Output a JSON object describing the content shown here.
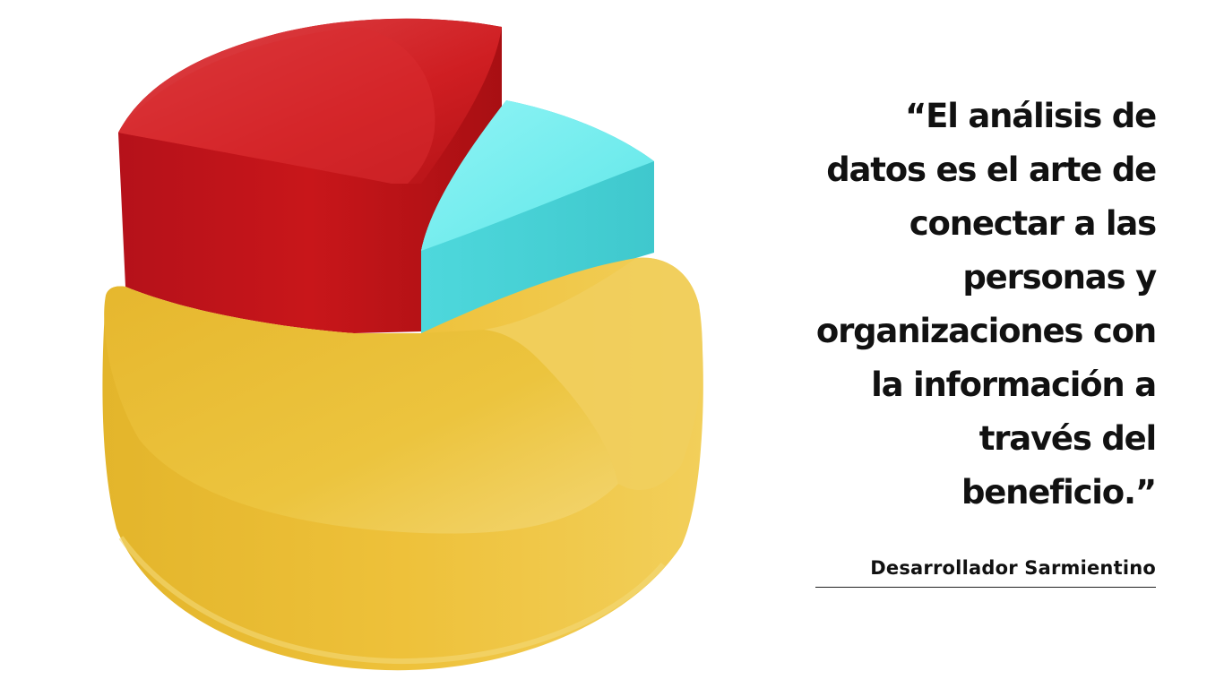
{
  "quote": {
    "lines": [
      "“El análisis de",
      "datos es el arte de",
      "conectar a las",
      "personas y",
      "organizaciones con",
      "la información a",
      "través del",
      "beneficio.”"
    ],
    "author": "Desarrollador Sarmientino"
  },
  "illustration": {
    "name": "3d-pie-chart-icon",
    "colors": {
      "red": "#c8161a",
      "cyan": "#58e3e6",
      "yellow": "#e8bd33",
      "background": "#ffffff",
      "text": "#111111"
    }
  }
}
